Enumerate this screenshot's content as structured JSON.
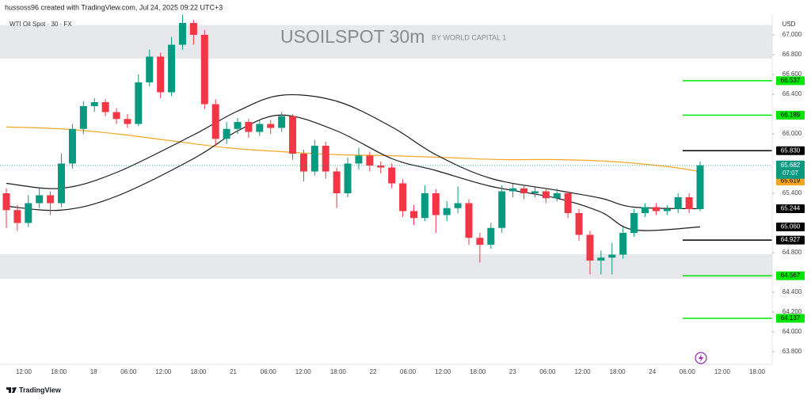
{
  "chart_data": {
    "type": "candlestick",
    "header": "hussoss96 created with TradingView.com, Jul 24, 2025 09:22 UTC+3",
    "symbol": "WTI Oil Spot · 30 · FX",
    "title": "USOILSPOT 30m",
    "subtitle": "BY WORLD CAPITAL 1",
    "currency": "USD",
    "brand": "TradingView",
    "up_color": "#089981",
    "down_color": "#f23645",
    "ylim": [
      63.688,
      67.208
    ],
    "yticks": [
      {
        "value": 67.0,
        "label": "67.000"
      },
      {
        "value": 66.8,
        "label": "66.800"
      },
      {
        "value": 66.6,
        "label": "66.600"
      },
      {
        "value": 66.4,
        "label": "66.400"
      },
      {
        "value": 66.0,
        "label": "66.000"
      },
      {
        "value": 65.4,
        "label": "65.400"
      },
      {
        "value": 64.8,
        "label": "64.800"
      },
      {
        "value": 64.4,
        "label": "64.400"
      },
      {
        "value": 64.2,
        "label": "64.200"
      },
      {
        "value": 64.0,
        "label": "64.000"
      },
      {
        "value": 63.8,
        "label": "63.800"
      }
    ],
    "x_labels": [
      "12:00",
      "18:00",
      "18",
      "06:00",
      "12:00",
      "18:00",
      "21",
      "06:00",
      "12:00",
      "18:00",
      "22",
      "06:00",
      "12:00",
      "18:00",
      "23",
      "06:00",
      "12:00",
      "18:00",
      "24",
      "06:00",
      "12:00",
      "18:00"
    ],
    "zones": [
      [
        66.76,
        67.1
      ],
      [
        64.536,
        64.784
      ]
    ],
    "ohlc": [
      [
        65.4,
        65.45,
        65.05,
        65.23
      ],
      [
        65.23,
        65.28,
        65.02,
        65.1
      ],
      [
        65.1,
        65.38,
        65.06,
        65.3
      ],
      [
        65.3,
        65.45,
        65.25,
        65.38
      ],
      [
        65.38,
        65.42,
        65.18,
        65.3
      ],
      [
        65.3,
        65.8,
        65.26,
        65.7
      ],
      [
        65.7,
        66.1,
        65.65,
        66.05
      ],
      [
        66.05,
        66.33,
        66.0,
        66.28
      ],
      [
        66.28,
        66.36,
        66.22,
        66.32
      ],
      [
        66.32,
        66.35,
        66.18,
        66.22
      ],
      [
        66.22,
        66.26,
        66.1,
        66.15
      ],
      [
        66.15,
        66.2,
        66.06,
        66.1
      ],
      [
        66.1,
        66.6,
        66.08,
        66.52
      ],
      [
        66.52,
        66.85,
        66.48,
        66.78
      ],
      [
        66.78,
        66.82,
        66.36,
        66.42
      ],
      [
        66.42,
        66.98,
        66.38,
        66.9
      ],
      [
        66.9,
        67.2,
        66.85,
        67.12
      ],
      [
        67.12,
        67.15,
        66.9,
        67.0
      ],
      [
        67.0,
        67.05,
        66.25,
        66.3
      ],
      [
        66.3,
        66.35,
        65.88,
        65.95
      ],
      [
        65.95,
        66.12,
        65.9,
        66.05
      ],
      [
        66.05,
        66.16,
        66.0,
        66.12
      ],
      [
        66.12,
        66.15,
        65.96,
        66.02
      ],
      [
        66.02,
        66.14,
        65.98,
        66.1
      ],
      [
        66.1,
        66.14,
        66.0,
        66.06
      ],
      [
        66.06,
        66.22,
        66.02,
        66.18
      ],
      [
        66.18,
        66.2,
        65.74,
        65.8
      ],
      [
        65.8,
        65.84,
        65.52,
        65.62
      ],
      [
        65.62,
        65.94,
        65.58,
        65.88
      ],
      [
        65.88,
        65.92,
        65.55,
        65.62
      ],
      [
        65.62,
        65.66,
        65.25,
        65.4
      ],
      [
        65.4,
        65.76,
        65.36,
        65.7
      ],
      [
        65.7,
        65.86,
        65.64,
        65.78
      ],
      [
        65.78,
        65.82,
        65.62,
        65.68
      ],
      [
        65.68,
        65.72,
        65.6,
        65.66
      ],
      [
        65.66,
        65.7,
        65.45,
        65.5
      ],
      [
        65.5,
        65.54,
        65.16,
        65.22
      ],
      [
        65.22,
        65.28,
        65.08,
        65.15
      ],
      [
        65.15,
        65.48,
        65.12,
        65.4
      ],
      [
        65.4,
        65.44,
        65.0,
        65.18
      ],
      [
        65.18,
        65.32,
        65.12,
        65.25
      ],
      [
        65.25,
        65.47,
        65.2,
        65.3
      ],
      [
        65.3,
        65.34,
        64.88,
        64.95
      ],
      [
        64.95,
        65.0,
        64.7,
        64.88
      ],
      [
        64.88,
        65.1,
        64.84,
        65.05
      ],
      [
        65.05,
        65.48,
        65.0,
        65.42
      ],
      [
        65.42,
        65.5,
        65.36,
        65.45
      ],
      [
        65.45,
        65.48,
        65.34,
        65.4
      ],
      [
        65.4,
        65.46,
        65.36,
        65.42
      ],
      [
        65.42,
        65.45,
        65.3,
        65.35
      ],
      [
        65.35,
        65.45,
        65.32,
        65.4
      ],
      [
        65.4,
        65.42,
        65.15,
        65.2
      ],
      [
        65.2,
        65.24,
        64.92,
        64.98
      ],
      [
        64.98,
        65.02,
        64.58,
        64.72
      ],
      [
        64.72,
        64.82,
        64.58,
        64.75
      ],
      [
        64.75,
        64.9,
        64.58,
        64.78
      ],
      [
        64.78,
        65.06,
        64.74,
        65.0
      ],
      [
        65.0,
        65.24,
        64.96,
        65.2
      ],
      [
        65.2,
        65.3,
        65.16,
        65.26
      ],
      [
        65.26,
        65.3,
        65.18,
        65.22
      ],
      [
        65.22,
        65.28,
        65.18,
        65.24
      ],
      [
        65.24,
        65.4,
        65.2,
        65.36
      ],
      [
        65.36,
        65.4,
        65.2,
        65.24
      ],
      [
        65.24,
        65.72,
        65.22,
        65.682
      ]
    ],
    "countdown": "07:07",
    "lines": [
      {
        "color": "#f5a623",
        "x": [
          0,
          5,
          10,
          15,
          20,
          25,
          30,
          35,
          40,
          45,
          50,
          55,
          60,
          63
        ],
        "values": [
          66.07,
          66.05,
          66.0,
          65.93,
          65.86,
          65.82,
          65.79,
          65.78,
          65.76,
          65.74,
          65.74,
          65.72,
          65.67,
          65.619
        ]
      },
      {
        "color": "#1a1a1a",
        "x": [
          0,
          5,
          10,
          17,
          21,
          25,
          30,
          35,
          39,
          44,
          50,
          54,
          57,
          63
        ],
        "values": [
          65.5,
          65.45,
          65.61,
          65.99,
          66.23,
          66.39,
          66.33,
          66.07,
          65.79,
          65.55,
          65.43,
          65.35,
          65.26,
          65.244
        ]
      },
      {
        "color": "#1a1a1a",
        "x": [
          0,
          5,
          10,
          17,
          21,
          25,
          30,
          35,
          39,
          44,
          50,
          54,
          57,
          63
        ],
        "values": [
          65.27,
          65.23,
          65.37,
          65.75,
          66.03,
          66.19,
          66.03,
          65.75,
          65.63,
          65.47,
          65.35,
          65.21,
          65.03,
          65.06
        ],
        "value_labels": [
          null,
          null,
          null,
          null,
          null,
          null,
          null,
          null,
          null,
          null,
          null,
          null,
          null,
          "65.060"
        ]
      }
    ],
    "levels": [
      {
        "value": 66.537,
        "label": "66.537",
        "color": "#00e600"
      },
      {
        "value": 66.189,
        "label": "66.189",
        "color": "#00e600"
      },
      {
        "value": 65.83,
        "label": "65.830",
        "color": "#000000"
      },
      {
        "value": 64.927,
        "label": "64.927",
        "color": "#000000"
      },
      {
        "value": 64.567,
        "label": "64.567",
        "color": "#00e600"
      },
      {
        "value": 64.137,
        "label": "64.137",
        "color": "#00e600"
      }
    ]
  }
}
